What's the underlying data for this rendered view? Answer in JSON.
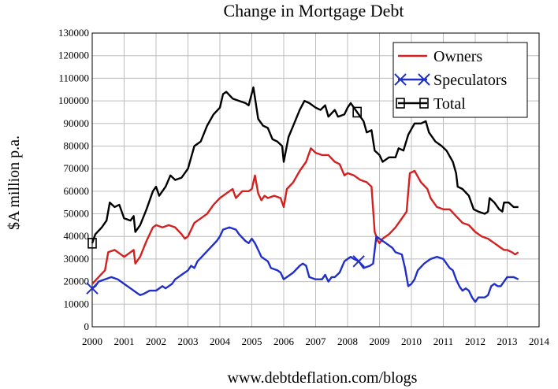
{
  "chart_data": {
    "type": "line",
    "title": "Change in Mortgage Debt",
    "xlabel": "",
    "ylabel": "$A million p.a.",
    "footer": "www.debtdeflation.com/blogs",
    "xlim": [
      2000,
      2014
    ],
    "ylim": [
      0,
      130000
    ],
    "x_ticks": [
      "2000",
      "2001",
      "2002",
      "2003",
      "2004",
      "2005",
      "2006",
      "2007",
      "2008",
      "2009",
      "2010",
      "2011",
      "2012",
      "2013",
      "2014"
    ],
    "y_ticks": [
      "0",
      "10000",
      "20000",
      "30000",
      "40000",
      "50000",
      "60000",
      "70000",
      "80000",
      "90000",
      "100000",
      "110000",
      "120000",
      "130000"
    ],
    "grid": true,
    "legend_position": "top-right",
    "series": [
      {
        "name": "Owners",
        "color": "#d42020",
        "marker": "none",
        "points": [
          [
            2000.0,
            19000
          ],
          [
            2000.2,
            22000
          ],
          [
            2000.4,
            25000
          ],
          [
            2000.5,
            33000
          ],
          [
            2000.7,
            34000
          ],
          [
            2000.9,
            32000
          ],
          [
            2001.0,
            31000
          ],
          [
            2001.2,
            33000
          ],
          [
            2001.3,
            34000
          ],
          [
            2001.35,
            28000
          ],
          [
            2001.5,
            31000
          ],
          [
            2001.7,
            38000
          ],
          [
            2001.9,
            44000
          ],
          [
            2002.0,
            45000
          ],
          [
            2002.2,
            44000
          ],
          [
            2002.4,
            45000
          ],
          [
            2002.6,
            44000
          ],
          [
            2002.8,
            41000
          ],
          [
            2002.9,
            39000
          ],
          [
            2003.0,
            40000
          ],
          [
            2003.2,
            46000
          ],
          [
            2003.4,
            48000
          ],
          [
            2003.6,
            50000
          ],
          [
            2003.8,
            54000
          ],
          [
            2004.0,
            57000
          ],
          [
            2004.2,
            59000
          ],
          [
            2004.4,
            61000
          ],
          [
            2004.5,
            57000
          ],
          [
            2004.7,
            60000
          ],
          [
            2004.9,
            60000
          ],
          [
            2005.0,
            61000
          ],
          [
            2005.1,
            67000
          ],
          [
            2005.2,
            59000
          ],
          [
            2005.3,
            56000
          ],
          [
            2005.4,
            58000
          ],
          [
            2005.5,
            57000
          ],
          [
            2005.7,
            58000
          ],
          [
            2005.9,
            57000
          ],
          [
            2006.0,
            53000
          ],
          [
            2006.1,
            61000
          ],
          [
            2006.3,
            64000
          ],
          [
            2006.5,
            69000
          ],
          [
            2006.7,
            73000
          ],
          [
            2006.85,
            79000
          ],
          [
            2007.0,
            77000
          ],
          [
            2007.2,
            76000
          ],
          [
            2007.4,
            76000
          ],
          [
            2007.6,
            73000
          ],
          [
            2007.75,
            72000
          ],
          [
            2007.9,
            67000
          ],
          [
            2008.0,
            68000
          ],
          [
            2008.2,
            67000
          ],
          [
            2008.4,
            65000
          ],
          [
            2008.6,
            64000
          ],
          [
            2008.75,
            62000
          ],
          [
            2008.85,
            42000
          ],
          [
            2008.95,
            38000
          ],
          [
            2009.0,
            37000
          ],
          [
            2009.1,
            39000
          ],
          [
            2009.3,
            41000
          ],
          [
            2009.5,
            44000
          ],
          [
            2009.7,
            48000
          ],
          [
            2009.85,
            51000
          ],
          [
            2009.95,
            68000
          ],
          [
            2010.1,
            69000
          ],
          [
            2010.3,
            64000
          ],
          [
            2010.5,
            61000
          ],
          [
            2010.6,
            57000
          ],
          [
            2010.8,
            53000
          ],
          [
            2011.0,
            52000
          ],
          [
            2011.2,
            52000
          ],
          [
            2011.4,
            49000
          ],
          [
            2011.6,
            46000
          ],
          [
            2011.8,
            45000
          ],
          [
            2012.0,
            42000
          ],
          [
            2012.2,
            40000
          ],
          [
            2012.4,
            39000
          ],
          [
            2012.6,
            37000
          ],
          [
            2012.8,
            35000
          ],
          [
            2012.9,
            34000
          ],
          [
            2013.0,
            34000
          ],
          [
            2013.15,
            33000
          ],
          [
            2013.25,
            32000
          ],
          [
            2013.35,
            33000
          ]
        ]
      },
      {
        "name": "Speculators",
        "color": "#1f2fc8",
        "marker": "x",
        "marker_at": [
          2000.0,
          2008.35
        ],
        "points": [
          [
            2000.0,
            17000
          ],
          [
            2000.1,
            18000
          ],
          [
            2000.2,
            20000
          ],
          [
            2000.4,
            21000
          ],
          [
            2000.6,
            22000
          ],
          [
            2000.8,
            21000
          ],
          [
            2000.9,
            20000
          ],
          [
            2001.0,
            19000
          ],
          [
            2001.2,
            17000
          ],
          [
            2001.4,
            15000
          ],
          [
            2001.5,
            14000
          ],
          [
            2001.6,
            14500
          ],
          [
            2001.8,
            16000
          ],
          [
            2002.0,
            16000
          ],
          [
            2002.2,
            18000
          ],
          [
            2002.3,
            17000
          ],
          [
            2002.5,
            19000
          ],
          [
            2002.6,
            21000
          ],
          [
            2002.8,
            23000
          ],
          [
            2003.0,
            25000
          ],
          [
            2003.1,
            27000
          ],
          [
            2003.2,
            26000
          ],
          [
            2003.3,
            29000
          ],
          [
            2003.5,
            32000
          ],
          [
            2003.7,
            35000
          ],
          [
            2003.9,
            38000
          ],
          [
            2004.0,
            40000
          ],
          [
            2004.1,
            43000
          ],
          [
            2004.3,
            44000
          ],
          [
            2004.5,
            43000
          ],
          [
            2004.6,
            41000
          ],
          [
            2004.8,
            38000
          ],
          [
            2004.9,
            37000
          ],
          [
            2005.0,
            39000
          ],
          [
            2005.1,
            37000
          ],
          [
            2005.2,
            34000
          ],
          [
            2005.3,
            31000
          ],
          [
            2005.5,
            29000
          ],
          [
            2005.6,
            26000
          ],
          [
            2005.8,
            25000
          ],
          [
            2005.9,
            24000
          ],
          [
            2006.0,
            21000
          ],
          [
            2006.1,
            22000
          ],
          [
            2006.3,
            24000
          ],
          [
            2006.5,
            27000
          ],
          [
            2006.6,
            28000
          ],
          [
            2006.7,
            27000
          ],
          [
            2006.8,
            22000
          ],
          [
            2007.0,
            21000
          ],
          [
            2007.2,
            21000
          ],
          [
            2007.3,
            23000
          ],
          [
            2007.4,
            20000
          ],
          [
            2007.5,
            22000
          ],
          [
            2007.6,
            22000
          ],
          [
            2007.75,
            24000
          ],
          [
            2007.9,
            29000
          ],
          [
            2008.0,
            30000
          ],
          [
            2008.1,
            31000
          ],
          [
            2008.2,
            30000
          ],
          [
            2008.35,
            29000
          ],
          [
            2008.5,
            26000
          ],
          [
            2008.7,
            27000
          ],
          [
            2008.8,
            28000
          ],
          [
            2008.9,
            40000
          ],
          [
            2009.0,
            39000
          ],
          [
            2009.2,
            37000
          ],
          [
            2009.4,
            35000
          ],
          [
            2009.5,
            33000
          ],
          [
            2009.7,
            32000
          ],
          [
            2009.8,
            26000
          ],
          [
            2009.9,
            18000
          ],
          [
            2010.0,
            19000
          ],
          [
            2010.1,
            21000
          ],
          [
            2010.2,
            25000
          ],
          [
            2010.4,
            28000
          ],
          [
            2010.6,
            30000
          ],
          [
            2010.8,
            31000
          ],
          [
            2011.0,
            30000
          ],
          [
            2011.2,
            26000
          ],
          [
            2011.3,
            25000
          ],
          [
            2011.4,
            21000
          ],
          [
            2011.5,
            18000
          ],
          [
            2011.6,
            16000
          ],
          [
            2011.7,
            17000
          ],
          [
            2011.8,
            16000
          ],
          [
            2011.9,
            13000
          ],
          [
            2012.0,
            11000
          ],
          [
            2012.1,
            13000
          ],
          [
            2012.3,
            13000
          ],
          [
            2012.4,
            14000
          ],
          [
            2012.5,
            18000
          ],
          [
            2012.6,
            19000
          ],
          [
            2012.7,
            18000
          ],
          [
            2012.8,
            18000
          ],
          [
            2012.9,
            20000
          ],
          [
            2013.0,
            22000
          ],
          [
            2013.2,
            22000
          ],
          [
            2013.35,
            21000
          ]
        ]
      },
      {
        "name": "Total",
        "color": "#000000",
        "marker": "square",
        "marker_at": [
          2000.0,
          2008.3
        ],
        "points": [
          [
            2000.0,
            37000
          ],
          [
            2000.1,
            41000
          ],
          [
            2000.3,
            44000
          ],
          [
            2000.45,
            47000
          ],
          [
            2000.55,
            55000
          ],
          [
            2000.7,
            53000
          ],
          [
            2000.85,
            54000
          ],
          [
            2001.0,
            48000
          ],
          [
            2001.2,
            47000
          ],
          [
            2001.3,
            49000
          ],
          [
            2001.35,
            42000
          ],
          [
            2001.5,
            45000
          ],
          [
            2001.7,
            52000
          ],
          [
            2001.9,
            60000
          ],
          [
            2002.0,
            62000
          ],
          [
            2002.1,
            58000
          ],
          [
            2002.3,
            62000
          ],
          [
            2002.45,
            67000
          ],
          [
            2002.6,
            65000
          ],
          [
            2002.8,
            66000
          ],
          [
            2003.0,
            70000
          ],
          [
            2003.2,
            80000
          ],
          [
            2003.4,
            82000
          ],
          [
            2003.6,
            89000
          ],
          [
            2003.8,
            94000
          ],
          [
            2004.0,
            97000
          ],
          [
            2004.1,
            103000
          ],
          [
            2004.2,
            104000
          ],
          [
            2004.4,
            101000
          ],
          [
            2004.6,
            100000
          ],
          [
            2004.8,
            99000
          ],
          [
            2004.9,
            98000
          ],
          [
            2005.05,
            106000
          ],
          [
            2005.2,
            92000
          ],
          [
            2005.35,
            89000
          ],
          [
            2005.5,
            88000
          ],
          [
            2005.65,
            83000
          ],
          [
            2005.8,
            82000
          ],
          [
            2005.95,
            80000
          ],
          [
            2006.0,
            73000
          ],
          [
            2006.15,
            84000
          ],
          [
            2006.3,
            89000
          ],
          [
            2006.5,
            96000
          ],
          [
            2006.65,
            100000
          ],
          [
            2006.8,
            99000
          ],
          [
            2007.0,
            97000
          ],
          [
            2007.15,
            96000
          ],
          [
            2007.3,
            98000
          ],
          [
            2007.4,
            93000
          ],
          [
            2007.6,
            96000
          ],
          [
            2007.7,
            93000
          ],
          [
            2007.9,
            94000
          ],
          [
            2008.0,
            97000
          ],
          [
            2008.1,
            99000
          ],
          [
            2008.3,
            95000
          ],
          [
            2008.5,
            91000
          ],
          [
            2008.6,
            86000
          ],
          [
            2008.75,
            87000
          ],
          [
            2008.85,
            78000
          ],
          [
            2009.0,
            76000
          ],
          [
            2009.1,
            73000
          ],
          [
            2009.3,
            75000
          ],
          [
            2009.5,
            75000
          ],
          [
            2009.6,
            79000
          ],
          [
            2009.75,
            78000
          ],
          [
            2009.9,
            85000
          ],
          [
            2010.1,
            90000
          ],
          [
            2010.3,
            90000
          ],
          [
            2010.45,
            91000
          ],
          [
            2010.55,
            86000
          ],
          [
            2010.75,
            82000
          ],
          [
            2010.95,
            80000
          ],
          [
            2011.1,
            78000
          ],
          [
            2011.3,
            73000
          ],
          [
            2011.4,
            68000
          ],
          [
            2011.45,
            62000
          ],
          [
            2011.6,
            61000
          ],
          [
            2011.8,
            58000
          ],
          [
            2011.95,
            52000
          ],
          [
            2012.1,
            51000
          ],
          [
            2012.3,
            50000
          ],
          [
            2012.4,
            51000
          ],
          [
            2012.45,
            57000
          ],
          [
            2012.6,
            55000
          ],
          [
            2012.75,
            52000
          ],
          [
            2012.85,
            51000
          ],
          [
            2012.9,
            55000
          ],
          [
            2013.05,
            55000
          ],
          [
            2013.2,
            53000
          ],
          [
            2013.35,
            53000
          ]
        ]
      }
    ]
  }
}
